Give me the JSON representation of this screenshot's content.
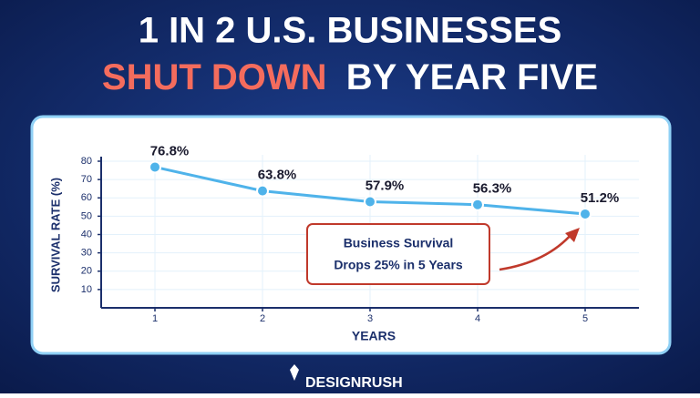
{
  "header": {
    "line1": "1 IN 2 U.S. BUSINESSES",
    "highlight": "SHUT DOWN",
    "rest": "BY YEAR FIVE"
  },
  "chart_data": {
    "type": "line",
    "categories": [
      "1",
      "2",
      "3",
      "4",
      "5"
    ],
    "series": [
      {
        "color": "#4fb3ea",
        "values": [
          76.8,
          63.8,
          57.9,
          56.3,
          51.2
        ],
        "value_labels": [
          "76.8%",
          "63.8%",
          "57.9%",
          "56.3%",
          "51.2%"
        ]
      }
    ],
    "ylim": [
      0,
      80
    ],
    "yticks": [
      10,
      20,
      30,
      40,
      50,
      60,
      70,
      80
    ],
    "grid": true,
    "y_label": "SURVIVAL RATE (%)",
    "x_label": "YEARS",
    "annotation": [
      "Business Survival",
      "Drops 25% in 5 Years"
    ]
  },
  "footer": {
    "brand": "DESIGNRUSH"
  }
}
